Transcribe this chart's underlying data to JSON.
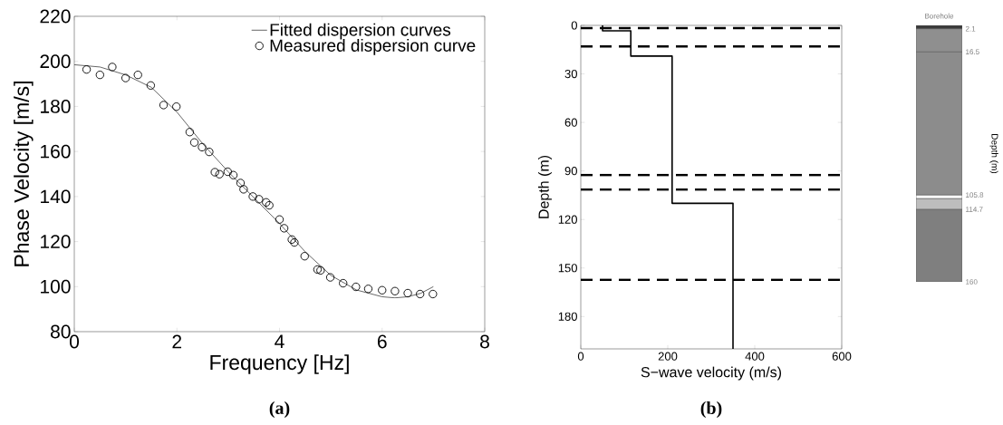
{
  "chart_data": [
    {
      "type": "line",
      "xlabel": "Frequency [Hz]",
      "ylabel": "Phase Velocity [m/s]",
      "xlim": [
        0,
        8
      ],
      "ylim": [
        80,
        220
      ],
      "xticks": [
        0,
        2,
        4,
        6,
        8
      ],
      "yticks": [
        80,
        100,
        120,
        140,
        160,
        180,
        200,
        220
      ],
      "legend": "top right",
      "annotations": [
        "(a)"
      ],
      "series": [
        {
          "name": "Fitted dispersion curves",
          "type": "line",
          "color": "#404040",
          "x": [
            0,
            0.5,
            1,
            1.5,
            2,
            2.5,
            3,
            3.5,
            4,
            4.5,
            5,
            5.5,
            6,
            6.25,
            6.5,
            6.75,
            7
          ],
          "values": [
            198.5,
            197.5,
            194,
            188.5,
            177.5,
            163.5,
            151,
            139.5,
            128,
            115.5,
            105,
            98.5,
            95.5,
            95,
            95.5,
            97,
            100
          ]
        },
        {
          "name": "Measured dispersion curve",
          "type": "scatter",
          "marker": "circle",
          "color": "#000000",
          "x": [
            0.24,
            0.5,
            0.74,
            1.0,
            1.24,
            1.49,
            1.74,
            1.99,
            2.25,
            2.34,
            2.49,
            2.63,
            2.74,
            2.83,
            2.99,
            3.1,
            3.24,
            3.3,
            3.48,
            3.6,
            3.74,
            3.8,
            4.0,
            4.09,
            4.24,
            4.29,
            4.49,
            4.74,
            4.8,
            4.99,
            5.24,
            5.49,
            5.73,
            6.0,
            6.25,
            6.5,
            6.74,
            6.99
          ],
          "values": [
            196.4,
            194,
            197.5,
            192.6,
            194,
            189.3,
            180.6,
            179.9,
            168.6,
            164,
            161.9,
            159.8,
            150.8,
            149.9,
            151,
            149.5,
            146,
            143.2,
            140,
            138.8,
            137.4,
            136.1,
            129.8,
            125.9,
            120.9,
            119.6,
            113.5,
            107.6,
            107.2,
            104.1,
            101.5,
            99.9,
            99,
            98.4,
            98,
            97.1,
            96.7,
            96.7
          ]
        }
      ]
    },
    {
      "type": "line",
      "xlabel": "S−wave velocity (m/s)",
      "ylabel": "Depth (m)",
      "xlim": [
        0,
        600
      ],
      "ylim": [
        200,
        0
      ],
      "xticks": [
        0,
        200,
        400,
        600
      ],
      "yticks": [
        0,
        30,
        60,
        90,
        120,
        150,
        180
      ],
      "annotations": [
        "(b)"
      ],
      "ref_lines": [
        {
          "axis": "y",
          "value": 1.7,
          "line_style": "dashed",
          "color": "#000000"
        },
        {
          "axis": "y",
          "value": 13,
          "line_style": "dashed",
          "color": "#000000"
        },
        {
          "axis": "y",
          "value": 92.5,
          "line_style": "dashed",
          "color": "#000000"
        },
        {
          "axis": "y",
          "value": 101.5,
          "line_style": "dashed",
          "color": "#000000"
        },
        {
          "axis": "y",
          "value": 157.3,
          "line_style": "dashed",
          "color": "#000000"
        }
      ],
      "series": [
        {
          "color": "#000000",
          "x": [
            50,
            50,
            115,
            115,
            210,
            210,
            350,
            350
          ],
          "values": [
            0,
            3.4,
            3.4,
            19,
            19,
            110,
            110,
            200
          ]
        }
      ]
    },
    {
      "type": "bar",
      "stacked": true,
      "title": "Borehole",
      "ylabel": "Depth (m)",
      "categories": [
        null
      ],
      "ylim": [
        160,
        0
      ],
      "yticks": [
        2.1,
        16.5,
        105.8,
        114.7,
        160
      ],
      "series": [
        {
          "color": "#3a3a3a",
          "values": [
            2.1
          ]
        },
        {
          "color": "#8f8f8f",
          "values": [
            14.4
          ]
        },
        {
          "color": "#8c8c8c",
          "values": [
            89.3
          ]
        },
        {
          "color": "#ffffff",
          "values": [
            2.2
          ]
        },
        {
          "color": "#bdbdbd",
          "values": [
            6.7
          ]
        },
        {
          "color": "#7f7f7f",
          "values": [
            45.3
          ]
        }
      ]
    }
  ]
}
